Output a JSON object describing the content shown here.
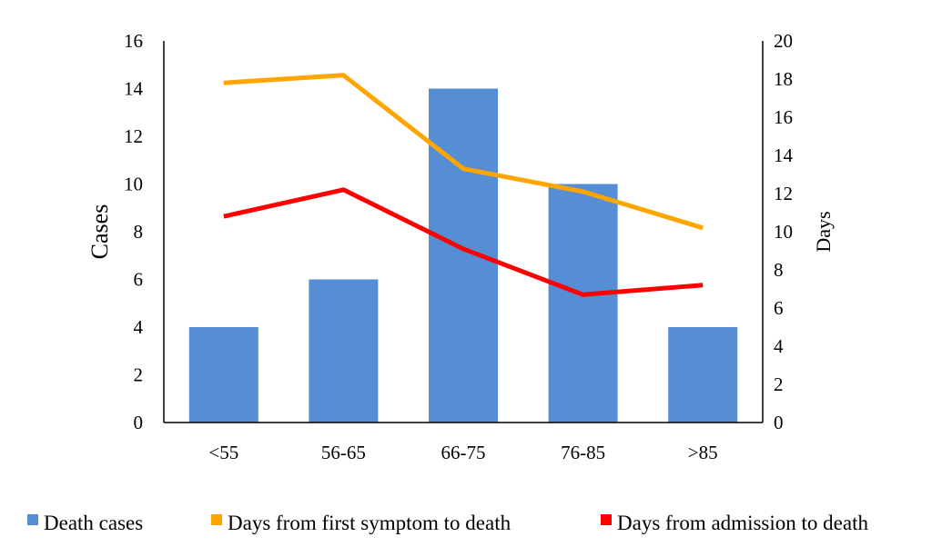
{
  "chart_data": {
    "type": "bar",
    "title": "",
    "categories": [
      "<55",
      "56-65",
      "66-75",
      "76-85",
      ">85"
    ],
    "xlabel": "",
    "ylabel": "Cases",
    "y2label": "Days",
    "ylim": [
      0,
      16
    ],
    "y2lim": [
      0,
      20
    ],
    "yticks": [
      0,
      2,
      4,
      6,
      8,
      10,
      12,
      14,
      16
    ],
    "y2ticks": [
      0,
      2,
      4,
      6,
      8,
      10,
      12,
      14,
      16,
      18,
      20
    ],
    "grid": false,
    "legend_position": "bottom",
    "series": [
      {
        "name": "Death cases",
        "type": "bar",
        "axis": "left",
        "color": "#558ED5",
        "values": [
          4,
          6,
          14,
          10,
          4
        ]
      },
      {
        "name": "Days from first symptom to death",
        "type": "line",
        "axis": "right",
        "color": "#FFA500",
        "values": [
          17.8,
          18.2,
          13.3,
          12.1,
          10.2
        ]
      },
      {
        "name": "Days from admission to death",
        "type": "line",
        "axis": "right",
        "color": "#FF0000",
        "values": [
          10.8,
          12.2,
          9.1,
          6.7,
          7.2
        ]
      }
    ]
  }
}
